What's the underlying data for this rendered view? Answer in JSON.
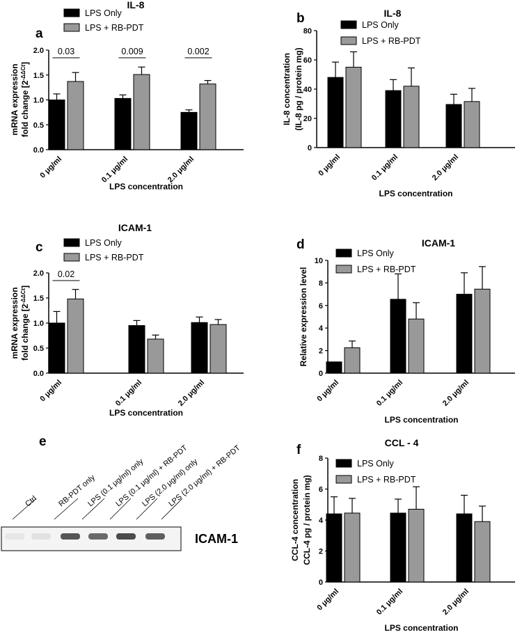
{
  "legend": {
    "series_a": "LPS Only",
    "series_b": "LPS + RB-PDT"
  },
  "colors": {
    "lps_only": "#000000",
    "lps_rbpdt": "#999999"
  },
  "chart_data": [
    {
      "panel": "a",
      "title": "IL-8",
      "type": "bar",
      "ylabel": [
        "mRNA expression",
        "fold change [2"
      ],
      "ylabel_sup": "-ΔΔCt",
      "ylabel_tail": "]",
      "xlabel": "LPS concentration",
      "categories": [
        "0 μg/ml",
        "0.1 μg/ml",
        "2.0 μg/ml"
      ],
      "ylim": [
        0,
        2.0
      ],
      "yticks": [
        "0.0",
        "0.5",
        "1.0",
        "1.5",
        "2.0"
      ],
      "series": [
        {
          "name": "LPS Only",
          "values": [
            1.0,
            1.03,
            0.75
          ],
          "errors": [
            0.12,
            0.07,
            0.05
          ]
        },
        {
          "name": "LPS + RB-PDT",
          "values": [
            1.37,
            1.51,
            1.32
          ],
          "errors": [
            0.18,
            0.15,
            0.07
          ]
        }
      ],
      "annotations": [
        "0.03",
        "0.009",
        "0.002"
      ]
    },
    {
      "panel": "b",
      "title": "IL-8",
      "type": "bar",
      "ylabel": [
        "IL-8 concentration",
        "(IL-8 pg / protein mg)"
      ],
      "xlabel": "LPS concentration",
      "categories": [
        "0 μg/ml",
        "0.1 μg/ml",
        "2.0 μg/ml"
      ],
      "ylim": [
        0,
        80
      ],
      "yticks": [
        "0",
        "20",
        "40",
        "60",
        "80"
      ],
      "series": [
        {
          "name": "LPS Only",
          "values": [
            48,
            39,
            29.5
          ],
          "errors": [
            10.5,
            7.5,
            7
          ]
        },
        {
          "name": "LPS + RB-PDT",
          "values": [
            55,
            42,
            31.5
          ],
          "errors": [
            10.5,
            12.5,
            9
          ]
        }
      ]
    },
    {
      "panel": "c",
      "title": "ICAM-1",
      "type": "bar",
      "ylabel": [
        "mRNA expression",
        "fold change [2"
      ],
      "ylabel_sup": "-ΔΔCt",
      "ylabel_tail": "]",
      "xlabel": "LPS concentration",
      "categories": [
        "0 μg/ml",
        "0.1 μg/ml",
        "2.0 μg/ml"
      ],
      "ylim": [
        0,
        2.0
      ],
      "yticks": [
        "0.0",
        "0.5",
        "1.0",
        "1.5",
        "2.0"
      ],
      "series": [
        {
          "name": "LPS Only",
          "values": [
            1.0,
            0.95,
            1.01
          ],
          "errors": [
            0.23,
            0.1,
            0.11
          ]
        },
        {
          "name": "LPS + RB-PDT",
          "values": [
            1.48,
            0.68,
            0.97
          ],
          "errors": [
            0.19,
            0.08,
            0.1
          ]
        }
      ],
      "annotations": [
        "0.02"
      ]
    },
    {
      "panel": "d",
      "title": "ICAM-1",
      "type": "bar",
      "ylabel": [
        "Relative expression level"
      ],
      "xlabel": "LPS concentration",
      "categories": [
        "0 μg/ml",
        "0.1 μg/ml",
        "2.0 μg/ml"
      ],
      "ylim": [
        0,
        10
      ],
      "yticks": [
        "0",
        "2",
        "4",
        "6",
        "8",
        "10"
      ],
      "series": [
        {
          "name": "LPS Only",
          "values": [
            1.0,
            6.55,
            7.0
          ],
          "errors": [
            0,
            2.25,
            1.9
          ]
        },
        {
          "name": "LPS + RB-PDT",
          "values": [
            2.25,
            4.8,
            7.45
          ],
          "errors": [
            0.6,
            1.45,
            2.0
          ]
        }
      ]
    },
    {
      "panel": "f",
      "title": "CCL - 4",
      "type": "bar",
      "ylabel": [
        "CCL-4 concentration",
        "CCL-4 pg / protein mg)"
      ],
      "xlabel": "LPS concentration",
      "categories": [
        "0 μg/ml",
        "0.1 μg/ml",
        "2.0 μg/ml"
      ],
      "ylim": [
        0,
        8
      ],
      "yticks": [
        "0",
        "2",
        "4",
        "6",
        "8"
      ],
      "series": [
        {
          "name": "LPS Only",
          "values": [
            4.4,
            4.45,
            4.4
          ],
          "errors": [
            1.1,
            0.9,
            1.2
          ]
        },
        {
          "name": "LPS + RB-PDT",
          "values": [
            4.45,
            4.7,
            3.9
          ],
          "errors": [
            0.95,
            1.45,
            1.0
          ]
        }
      ]
    }
  ],
  "blot": {
    "panel": "e",
    "label": "ICAM-1",
    "lanes": [
      "Ctrl",
      "RB-PDT only",
      "LPS (0.1 μg/ml) only",
      "LPS (0.1 μg/ml) + RB-PDT",
      "LPS (2.0 μg/ml) only",
      "LPS (2.0 μg/ml) + RB-PDT"
    ],
    "band_intensity": [
      0.12,
      0.15,
      0.85,
      0.75,
      0.9,
      0.8
    ]
  }
}
